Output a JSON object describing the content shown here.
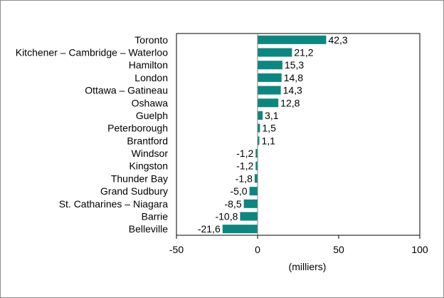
{
  "chart_data": {
    "type": "bar",
    "orientation": "horizontal",
    "categories": [
      "Toronto",
      "Kitchener – Cambridge – Waterloo",
      "Hamilton",
      "London",
      "Ottawa – Gatineau",
      "Oshawa",
      "Guelph",
      "Peterborough",
      "Brantford",
      "Windsor",
      "Kingston",
      "Thunder Bay",
      "Grand Sudbury",
      "St. Catharines – Niagara",
      "Barrie",
      "Belleville"
    ],
    "values": [
      42.3,
      21.2,
      15.3,
      14.8,
      14.3,
      12.8,
      3.1,
      1.5,
      1.1,
      -1.2,
      -1.2,
      -1.8,
      -5.0,
      -8.5,
      -10.8,
      -21.6
    ],
    "value_labels": [
      "42,3",
      "21,2",
      "15,3",
      "14,8",
      "14,3",
      "12,8",
      "3,1",
      "1,5",
      "1,1",
      "-1,2",
      "-1,2",
      "-1,8",
      "-5,0",
      "-8,5",
      "-10,8",
      "-21,6"
    ],
    "xlim": [
      -50,
      100
    ],
    "xticks": [
      -50,
      0,
      50,
      100
    ],
    "xtick_labels": [
      "-50",
      "0",
      "50",
      "100"
    ],
    "xlabel": "(milliers)",
    "title": "",
    "grid": false,
    "legend": false,
    "bar_color": "#0e8680"
  }
}
